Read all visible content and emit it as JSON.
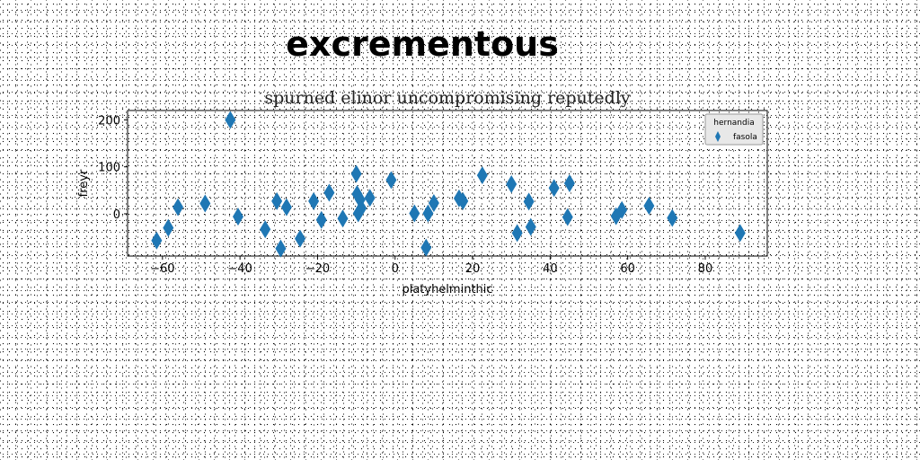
{
  "chart_data": {
    "type": "scatter",
    "suptitle": "excrementous",
    "title": "spurned elinor uncompromising reputedly",
    "xlabel": "platyhelminthic",
    "ylabel": "freyr",
    "xlim": [
      -69,
      96
    ],
    "ylim": [
      -90,
      220
    ],
    "xticks": [
      -60,
      -40,
      -20,
      0,
      20,
      40,
      60,
      80
    ],
    "yticks": [
      0,
      100,
      200
    ],
    "grid": false,
    "legend": {
      "title": "hernandia",
      "placement": "top-right"
    },
    "colors": {
      "series": "#1f77b4"
    },
    "series": [
      {
        "name": "fasola",
        "marker": "thin-diamond",
        "x": [
          -61.5,
          -58.5,
          -56,
          -49,
          -42.5,
          -40.5,
          -33.5,
          -30.5,
          -29.5,
          -28,
          -24.5,
          -21,
          -19,
          -17,
          -13.5,
          -10,
          -9.8,
          -9.5,
          -9,
          -8.7,
          -6.5,
          -1,
          5,
          8,
          8.5,
          10,
          16.5,
          17.5,
          22.5,
          30,
          31.5,
          34.5,
          35,
          41,
          44.5,
          45,
          57,
          58.5,
          65.5,
          71.5,
          89
        ],
        "y": [
          -57,
          -30,
          14,
          22,
          200,
          -6,
          -33,
          27,
          -74,
          14,
          -53,
          27,
          -13,
          45,
          -10,
          85,
          42,
          1,
          30,
          12,
          34,
          72,
          1,
          -72,
          1,
          23,
          33,
          27,
          82,
          63,
          -41,
          26,
          -28,
          55,
          -7,
          65,
          -5,
          8,
          17,
          -9,
          -41
        ]
      }
    ]
  }
}
